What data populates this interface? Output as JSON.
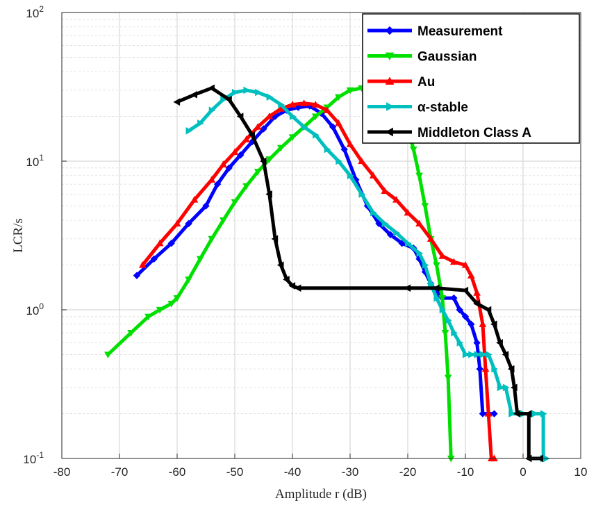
{
  "chart_data": {
    "type": "line",
    "xlabel": "Amplitude r (dB)",
    "ylabel": "LCR/s",
    "xlim": [
      -80,
      10
    ],
    "ylim": [
      0.1,
      100
    ],
    "yscale": "log",
    "grid": true,
    "legend_position": "top-right",
    "x_ticks": [
      {
        "value": -80,
        "label": "-80"
      },
      {
        "value": -70,
        "label": "-70"
      },
      {
        "value": -60,
        "label": "-60"
      },
      {
        "value": -50,
        "label": "-50"
      },
      {
        "value": -40,
        "label": "-40"
      },
      {
        "value": -30,
        "label": "-30"
      },
      {
        "value": -20,
        "label": "-20"
      },
      {
        "value": -10,
        "label": "-10"
      },
      {
        "value": 0,
        "label": "0"
      },
      {
        "value": 10,
        "label": "10"
      }
    ],
    "y_ticks": [
      {
        "value": 0.1,
        "base": "10",
        "exp": "-1"
      },
      {
        "value": 1,
        "base": "10",
        "exp": "0"
      },
      {
        "value": 10,
        "base": "10",
        "exp": "1"
      },
      {
        "value": 100,
        "base": "10",
        "exp": "2"
      }
    ],
    "series": [
      {
        "name": "Measurement",
        "color": "#0000ff",
        "marker": "diamond",
        "points": [
          [
            -67,
            1.7
          ],
          [
            -64,
            2.2
          ],
          [
            -61,
            2.8
          ],
          [
            -58,
            3.8
          ],
          [
            -55,
            5.0
          ],
          [
            -53,
            7.0
          ],
          [
            -51,
            9.0
          ],
          [
            -49,
            11
          ],
          [
            -47,
            13.5
          ],
          [
            -45,
            16.5
          ],
          [
            -43,
            20
          ],
          [
            -41,
            22
          ],
          [
            -39,
            23
          ],
          [
            -37,
            23.5
          ],
          [
            -35,
            21
          ],
          [
            -33,
            17
          ],
          [
            -31,
            12
          ],
          [
            -29,
            7.5
          ],
          [
            -27,
            5.0
          ],
          [
            -25,
            3.8
          ],
          [
            -23,
            3.2
          ],
          [
            -21,
            2.8
          ],
          [
            -19,
            2.6
          ],
          [
            -18,
            2.2
          ],
          [
            -17,
            1.8
          ],
          [
            -16,
            1.5
          ],
          [
            -15,
            1.3
          ],
          [
            -14,
            1.2
          ],
          [
            -12,
            1.2
          ],
          [
            -11,
            1.0
          ],
          [
            -10,
            0.9
          ],
          [
            -9,
            0.8
          ],
          [
            -8,
            0.6
          ],
          [
            -7.5,
            0.4
          ],
          [
            -7,
            0.2
          ],
          [
            -5,
            0.2
          ]
        ]
      },
      {
        "name": "Gaussian",
        "color": "#00e000",
        "marker": "triangle-down",
        "points": [
          [
            -72,
            0.5
          ],
          [
            -68,
            0.7
          ],
          [
            -65,
            0.9
          ],
          [
            -63,
            1.0
          ],
          [
            -61,
            1.1
          ],
          [
            -60,
            1.2
          ],
          [
            -58,
            1.6
          ],
          [
            -56,
            2.2
          ],
          [
            -54,
            3.0
          ],
          [
            -52,
            4.0
          ],
          [
            -50,
            5.3
          ],
          [
            -48,
            6.8
          ],
          [
            -46,
            8.5
          ],
          [
            -44,
            10.3
          ],
          [
            -42,
            12.3
          ],
          [
            -40,
            14.5
          ],
          [
            -38,
            17
          ],
          [
            -36,
            20
          ],
          [
            -34,
            23
          ],
          [
            -32,
            27
          ],
          [
            -30,
            30
          ],
          [
            -28,
            31
          ],
          [
            -26,
            28
          ],
          [
            -24,
            24
          ],
          [
            -22,
            20
          ],
          [
            -20,
            17
          ],
          [
            -19,
            12
          ],
          [
            -18,
            8
          ],
          [
            -17,
            5
          ],
          [
            -16,
            3
          ],
          [
            -15,
            2
          ],
          [
            -14,
            1.2
          ],
          [
            -13.5,
            0.7
          ],
          [
            -13,
            0.35
          ],
          [
            -12.5,
            0.1
          ]
        ]
      },
      {
        "name": "Au",
        "color": "#ff0000",
        "marker": "triangle-up",
        "points": [
          [
            -66,
            2.0
          ],
          [
            -63,
            2.8
          ],
          [
            -60,
            3.8
          ],
          [
            -57,
            5.5
          ],
          [
            -54,
            7.5
          ],
          [
            -52,
            9.5
          ],
          [
            -50,
            11.5
          ],
          [
            -48,
            14
          ],
          [
            -46,
            17
          ],
          [
            -44,
            20
          ],
          [
            -42,
            22.5
          ],
          [
            -40,
            24
          ],
          [
            -38,
            24.5
          ],
          [
            -36,
            24
          ],
          [
            -34,
            22
          ],
          [
            -32,
            18
          ],
          [
            -30,
            13
          ],
          [
            -28,
            10
          ],
          [
            -26,
            8
          ],
          [
            -24,
            6.3
          ],
          [
            -22,
            5.5
          ],
          [
            -20,
            4.5
          ],
          [
            -18,
            3.8
          ],
          [
            -16,
            3.0
          ],
          [
            -14,
            2.3
          ],
          [
            -12,
            2.1
          ],
          [
            -10,
            2.0
          ],
          [
            -9,
            1.7
          ],
          [
            -8,
            1.3
          ],
          [
            -7,
            0.8
          ],
          [
            -6.5,
            0.4
          ],
          [
            -6,
            0.2
          ],
          [
            -5.5,
            0.1
          ],
          [
            -5,
            0.1
          ]
        ]
      },
      {
        "name": "α-stable",
        "color": "#00bfbf",
        "marker": "triangle-right",
        "points": [
          [
            -58,
            16
          ],
          [
            -56,
            18
          ],
          [
            -54,
            22
          ],
          [
            -52,
            26
          ],
          [
            -50,
            29
          ],
          [
            -48,
            30
          ],
          [
            -46,
            29
          ],
          [
            -44,
            27
          ],
          [
            -42,
            24
          ],
          [
            -40,
            20
          ],
          [
            -38,
            17
          ],
          [
            -36,
            15
          ],
          [
            -34,
            12
          ],
          [
            -32,
            10
          ],
          [
            -30,
            8
          ],
          [
            -28,
            6
          ],
          [
            -26,
            4.5
          ],
          [
            -24,
            3.8
          ],
          [
            -22,
            3.3
          ],
          [
            -20,
            2.8
          ],
          [
            -18,
            2.4
          ],
          [
            -17,
            2.0
          ],
          [
            -16,
            1.5
          ],
          [
            -15,
            1.2
          ],
          [
            -14,
            1.0
          ],
          [
            -13,
            0.85
          ],
          [
            -12,
            0.7
          ],
          [
            -11,
            0.6
          ],
          [
            -10,
            0.5
          ],
          [
            -9,
            0.5
          ],
          [
            -8,
            0.5
          ],
          [
            -7,
            0.5
          ],
          [
            -6,
            0.5
          ],
          [
            -5,
            0.4
          ],
          [
            -4,
            0.3
          ],
          [
            -3,
            0.3
          ],
          [
            -2,
            0.2
          ],
          [
            0,
            0.2
          ],
          [
            2,
            0.2
          ],
          [
            3.5,
            0.2
          ],
          [
            3.5,
            0.1
          ],
          [
            4,
            0.1
          ]
        ]
      },
      {
        "name": "Middleton Class A",
        "color": "#000000",
        "marker": "triangle-left",
        "points": [
          [
            -60,
            25
          ],
          [
            -57,
            28
          ],
          [
            -54,
            31
          ],
          [
            -51,
            26
          ],
          [
            -49,
            20
          ],
          [
            -47,
            15
          ],
          [
            -45,
            10
          ],
          [
            -44,
            6
          ],
          [
            -43,
            3
          ],
          [
            -42,
            2
          ],
          [
            -41,
            1.6
          ],
          [
            -40,
            1.45
          ],
          [
            -39,
            1.4
          ],
          [
            -20,
            1.4
          ],
          [
            -15,
            1.4
          ],
          [
            -10,
            1.35
          ],
          [
            -8,
            1.1
          ],
          [
            -6,
            1.0
          ],
          [
            -5,
            0.8
          ],
          [
            -4,
            0.6
          ],
          [
            -3,
            0.5
          ],
          [
            -2,
            0.4
          ],
          [
            -1.5,
            0.3
          ],
          [
            -1,
            0.2
          ],
          [
            1,
            0.2
          ],
          [
            1,
            0.1
          ],
          [
            3,
            0.1
          ]
        ]
      }
    ]
  }
}
